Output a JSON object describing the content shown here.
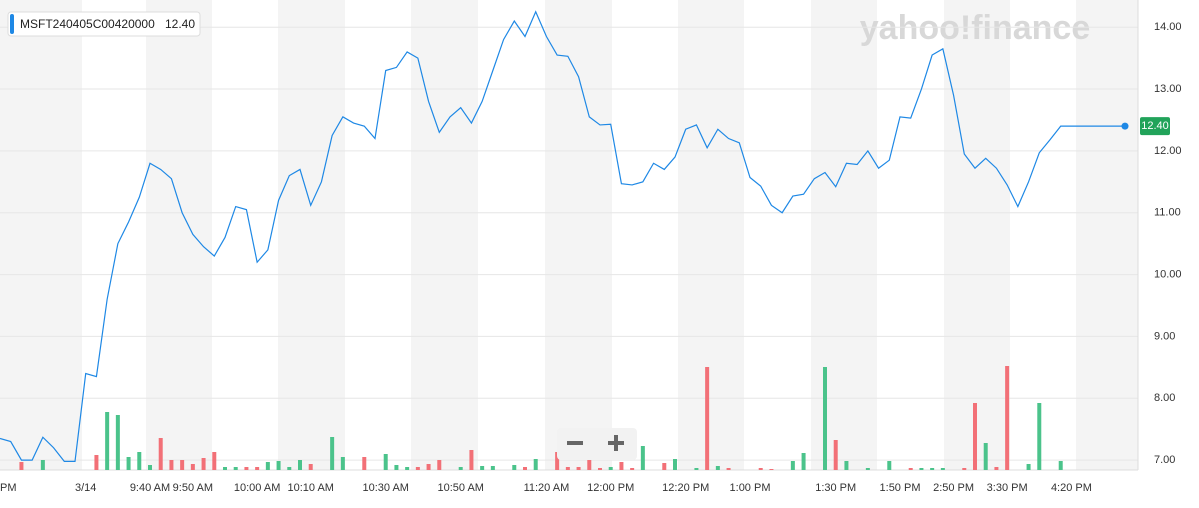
{
  "chart_data": {
    "type": "line",
    "watermark": "yahoo!finance",
    "legend_label": "MSFT240405C00420000",
    "last_label": "12.40",
    "categories": [
      "PM",
      null,
      null,
      null,
      null,
      null,
      null,
      null,
      "3/14",
      null,
      null,
      null,
      null,
      null,
      "9:40 AM",
      null,
      null,
      null,
      "9:50 AM",
      null,
      null,
      null,
      null,
      null,
      "10:00 AM",
      null,
      null,
      null,
      null,
      "10:10 AM",
      null,
      null,
      null,
      null,
      null,
      null,
      "10:30 AM",
      null,
      null,
      null,
      null,
      null,
      null,
      "10:50 AM",
      null,
      null,
      null,
      null,
      null,
      null,
      null,
      "11:20 AM",
      null,
      null,
      null,
      null,
      null,
      "12:00 PM",
      null,
      null,
      null,
      null,
      null,
      null,
      "12:20 PM",
      null,
      null,
      null,
      null,
      null,
      "1:00 PM",
      null,
      null,
      null,
      null,
      null,
      null,
      null,
      "1:30 PM",
      null,
      null,
      null,
      null,
      null,
      "1:50 PM",
      null,
      null,
      null,
      null,
      "2:50 PM",
      null,
      null,
      null,
      null,
      "3:30 PM",
      null,
      null,
      null,
      null,
      null,
      "4:20 PM",
      null,
      null,
      null,
      null,
      null
    ],
    "series": [
      {
        "name": "MSFT240405C00420000",
        "color": "#1e88e5",
        "values": [
          7.35,
          7.3,
          7.0,
          7.0,
          7.37,
          7.2,
          6.98,
          6.98,
          8.4,
          8.35,
          9.6,
          10.5,
          10.85,
          11.25,
          11.8,
          11.7,
          11.55,
          11.0,
          10.65,
          10.45,
          10.3,
          10.6,
          11.1,
          11.05,
          10.2,
          10.4,
          11.2,
          11.6,
          11.7,
          11.12,
          11.5,
          12.25,
          12.55,
          12.45,
          12.4,
          12.2,
          13.3,
          13.35,
          13.6,
          13.5,
          12.8,
          12.3,
          12.55,
          12.7,
          12.45,
          12.8,
          13.3,
          13.8,
          14.1,
          13.85,
          14.25,
          13.85,
          13.55,
          13.53,
          13.2,
          12.55,
          12.42,
          12.43,
          11.47,
          11.45,
          11.5,
          11.8,
          11.7,
          11.9,
          12.35,
          12.42,
          12.05,
          12.35,
          12.2,
          12.13,
          11.57,
          11.43,
          11.12,
          11.0,
          11.27,
          11.3,
          11.55,
          11.65,
          11.42,
          11.8,
          11.78,
          12.0,
          11.72,
          11.85,
          12.55,
          12.53,
          13.0,
          13.55,
          13.65,
          12.9,
          11.95,
          11.72,
          11.88,
          11.72,
          11.45,
          11.1,
          11.5,
          11.97,
          12.18,
          12.4,
          12.4,
          12.4,
          12.4,
          12.4,
          12.4,
          12.4
        ]
      },
      {
        "name": "Volume",
        "axis": "y2",
        "up_color": "#4bc38b",
        "down_color": "#f27077",
        "values": [
          null,
          null,
          8,
          null,
          10,
          null,
          null,
          null,
          null,
          15,
          58,
          55,
          13,
          18,
          5,
          32,
          10,
          10,
          6,
          12,
          18,
          3,
          3,
          3,
          3,
          8,
          9,
          3,
          10,
          6,
          null,
          33,
          13,
          null,
          13,
          null,
          16,
          5,
          3,
          3,
          6,
          10,
          null,
          3,
          20,
          4,
          4,
          null,
          5,
          3,
          11,
          null,
          18,
          3,
          3,
          13,
          2,
          3,
          8,
          2,
          24,
          null,
          7,
          11,
          null,
          2,
          103,
          4,
          2,
          null,
          null,
          2,
          1,
          null,
          9,
          17,
          null,
          103,
          30,
          9,
          null,
          2,
          null,
          9,
          null,
          2,
          2,
          2,
          2,
          null,
          2,
          67,
          27,
          3,
          104,
          null,
          6,
          67,
          null,
          9,
          null,
          null,
          null,
          null,
          null,
          null
        ]
      }
    ],
    "ylim": [
      6.84,
      14.44
    ],
    "y2lim": [
      0,
      470
    ],
    "yticks": [
      {
        "value": 7,
        "label": "7.00"
      },
      {
        "value": 8,
        "label": "8.00"
      },
      {
        "value": 9,
        "label": "9.00"
      },
      {
        "value": 10,
        "label": "10.00"
      },
      {
        "value": 11,
        "label": "11.00"
      },
      {
        "value": 12,
        "label": "12.00"
      },
      {
        "value": 13,
        "label": "13.00"
      },
      {
        "value": 14,
        "label": "14.00"
      }
    ],
    "grid": true
  }
}
